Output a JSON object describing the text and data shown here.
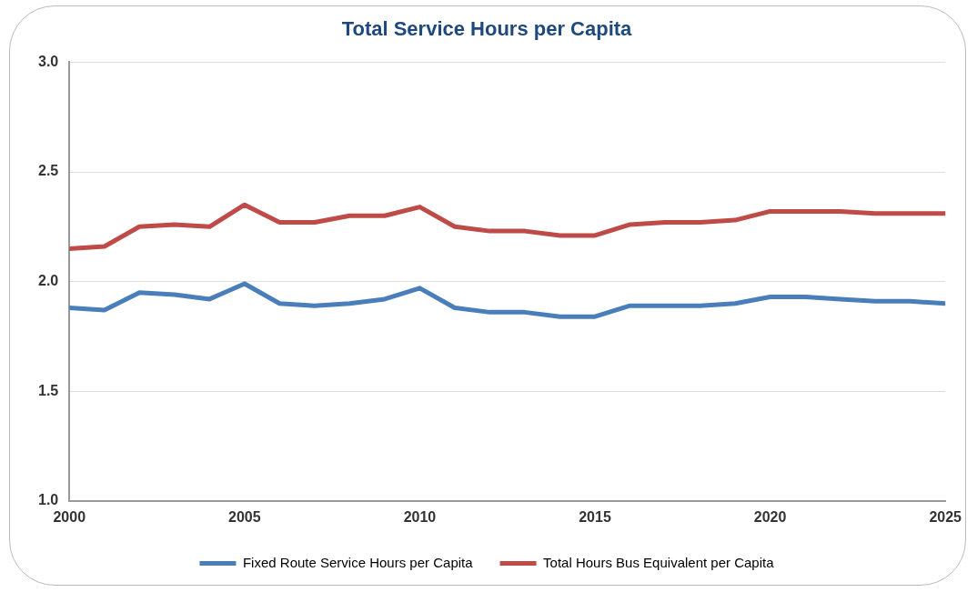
{
  "chart_data": {
    "type": "line",
    "title": "Total Service Hours per Capita",
    "x": [
      2000,
      2001,
      2002,
      2003,
      2004,
      2005,
      2006,
      2007,
      2008,
      2009,
      2010,
      2011,
      2012,
      2013,
      2014,
      2015,
      2016,
      2017,
      2018,
      2019,
      2020,
      2021,
      2022,
      2023,
      2024,
      2025
    ],
    "series": [
      {
        "name": "Fixed Route Service Hours per Capita",
        "color": "#4a7ebb",
        "values": [
          1.88,
          1.87,
          1.95,
          1.94,
          1.92,
          1.99,
          1.9,
          1.89,
          1.9,
          1.92,
          1.97,
          1.88,
          1.86,
          1.86,
          1.84,
          1.84,
          1.89,
          1.89,
          1.89,
          1.9,
          1.93,
          1.93,
          1.92,
          1.91,
          1.91,
          1.9
        ]
      },
      {
        "name": "Total Hours Bus Equivalent per Capita",
        "color": "#be4b48",
        "values": [
          2.15,
          2.16,
          2.25,
          2.26,
          2.25,
          2.35,
          2.27,
          2.27,
          2.3,
          2.3,
          2.34,
          2.25,
          2.23,
          2.23,
          2.21,
          2.21,
          2.26,
          2.27,
          2.27,
          2.28,
          2.32,
          2.32,
          2.32,
          2.31,
          2.31,
          2.31
        ]
      }
    ],
    "xlim": [
      2000,
      2025
    ],
    "xticks": [
      2000,
      2005,
      2010,
      2015,
      2020,
      2025
    ],
    "ylim": [
      1.0,
      3.0
    ],
    "yticks": [
      {
        "value": 1.0,
        "label": "1.0"
      },
      {
        "value": 1.5,
        "label": "1.5"
      },
      {
        "value": 2.0,
        "label": "2.0"
      },
      {
        "value": 2.5,
        "label": "2.5"
      },
      {
        "value": 3.0,
        "label": "3.0"
      }
    ],
    "grid": "y",
    "legend": "bottom",
    "marker": "none",
    "line_style": "solid"
  }
}
